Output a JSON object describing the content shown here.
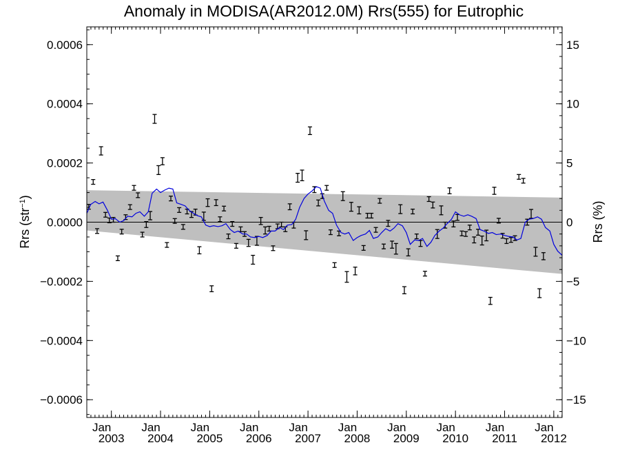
{
  "chart_data": {
    "type": "scatter",
    "title": "Anomaly in MODISA(AR2012.0M) Rrs(555) for Eutrophic",
    "ylabel_left": {
      "main": "Rrs (str",
      "sup": "−1",
      "close": ")"
    },
    "ylabel_right": "Rrs (%)",
    "xlim": [
      2002.5,
      2012.17
    ],
    "ylim": [
      -0.00066,
      0.00066
    ],
    "right_ylim": [
      -16.5,
      16.5
    ],
    "grid": false,
    "left_ticks": [
      {
        "v": 0.0006,
        "label": "0.0006"
      },
      {
        "v": 0.0004,
        "label": "0.0004"
      },
      {
        "v": 0.0002,
        "label": "0.0002"
      },
      {
        "v": 0.0,
        "label": "0.0000"
      },
      {
        "v": -0.0002,
        "label": "−0.0002"
      },
      {
        "v": -0.0004,
        "label": "−0.0004"
      },
      {
        "v": -0.0006,
        "label": "−0.0006"
      }
    ],
    "right_ticks": [
      {
        "v": 15,
        "label": "15"
      },
      {
        "v": 10,
        "label": "10"
      },
      {
        "v": 5,
        "label": "5"
      },
      {
        "v": 0,
        "label": "0"
      },
      {
        "v": -5,
        "label": "−5"
      },
      {
        "v": -10,
        "label": "−10"
      },
      {
        "v": -15,
        "label": "−15"
      }
    ],
    "x_major_ticks": [
      {
        "v": 2003.0,
        "month": "Jan",
        "year": "2003"
      },
      {
        "v": 2004.0,
        "month": "Jan",
        "year": "2004"
      },
      {
        "v": 2005.0,
        "month": "Jan",
        "year": "2005"
      },
      {
        "v": 2006.0,
        "month": "Jan",
        "year": "2006"
      },
      {
        "v": 2007.0,
        "month": "Jan",
        "year": "2007"
      },
      {
        "v": 2008.0,
        "month": "Jan",
        "year": "2008"
      },
      {
        "v": 2009.0,
        "month": "Jan",
        "year": "2009"
      },
      {
        "v": 2010.0,
        "month": "Jan",
        "year": "2010"
      },
      {
        "v": 2011.0,
        "month": "Jan",
        "year": "2011"
      },
      {
        "v": 2012.0,
        "month": "Jan",
        "year": "2012"
      }
    ],
    "band": {
      "upper": [
        [
          2002.5,
          0.000108
        ],
        [
          2012.17,
          8.3e-05
        ]
      ],
      "lower": [
        [
          2002.5,
          -2.8e-05
        ],
        [
          2012.17,
          -0.000175
        ]
      ]
    },
    "zero_line": 0.0,
    "points": [
      {
        "x": 2002.54,
        "y": 5.2e-05,
        "err": 8e-06
      },
      {
        "x": 2002.63,
        "y": 0.000136,
        "err": 8e-06
      },
      {
        "x": 2002.71,
        "y": -3e-05,
        "err": 8e-06
      },
      {
        "x": 2002.79,
        "y": 0.000241,
        "err": 1.4e-05
      },
      {
        "x": 2002.88,
        "y": 2.5e-05,
        "err": 8e-06
      },
      {
        "x": 2002.96,
        "y": 6e-06,
        "err": 8e-06
      },
      {
        "x": 2003.04,
        "y": 8e-06,
        "err": 8e-06
      },
      {
        "x": 2003.13,
        "y": -0.000122,
        "err": 8e-06
      },
      {
        "x": 2003.21,
        "y": -3.2e-05,
        "err": 8e-06
      },
      {
        "x": 2003.29,
        "y": 1.7e-05,
        "err": 8e-06
      },
      {
        "x": 2003.38,
        "y": 5.1e-05,
        "err": 8e-06
      },
      {
        "x": 2003.46,
        "y": 0.000116,
        "err": 8e-06
      },
      {
        "x": 2003.54,
        "y": 9.1e-05,
        "err": 8e-06
      },
      {
        "x": 2003.63,
        "y": -4.2e-05,
        "err": 8e-06
      },
      {
        "x": 2003.71,
        "y": -8e-06,
        "err": 1e-05
      },
      {
        "x": 2003.79,
        "y": 2.2e-05,
        "err": 1.4e-05
      },
      {
        "x": 2003.88,
        "y": 0.000349,
        "err": 1.5e-05
      },
      {
        "x": 2003.96,
        "y": 0.000176,
        "err": 1.5e-05
      },
      {
        "x": 2004.04,
        "y": 0.000206,
        "err": 1.2e-05
      },
      {
        "x": 2004.13,
        "y": -7.7e-05,
        "err": 8e-06
      },
      {
        "x": 2004.21,
        "y": 8e-05,
        "err": 8e-06
      },
      {
        "x": 2004.29,
        "y": 4e-06,
        "err": 8e-06
      },
      {
        "x": 2004.38,
        "y": 4.1e-05,
        "err": 8e-06
      },
      {
        "x": 2004.46,
        "y": -1.6e-05,
        "err": 8e-06
      },
      {
        "x": 2004.54,
        "y": 3.6e-05,
        "err": 8e-06
      },
      {
        "x": 2004.63,
        "y": 2.6e-05,
        "err": 1e-05
      },
      {
        "x": 2004.71,
        "y": 3.4e-05,
        "err": 1e-05
      },
      {
        "x": 2004.79,
        "y": -9.5e-05,
        "err": 1.2e-05
      },
      {
        "x": 2004.88,
        "y": 2e-05,
        "err": 1.4e-05
      },
      {
        "x": 2004.96,
        "y": 6.6e-05,
        "err": 1.3e-05
      },
      {
        "x": 2005.04,
        "y": -0.000225,
        "err": 1e-05
      },
      {
        "x": 2005.13,
        "y": 6.6e-05,
        "err": 1e-05
      },
      {
        "x": 2005.21,
        "y": 1e-05,
        "err": 8e-06
      },
      {
        "x": 2005.29,
        "y": 4.6e-05,
        "err": 8e-06
      },
      {
        "x": 2005.38,
        "y": -4.8e-05,
        "err": 8e-06
      },
      {
        "x": 2005.46,
        "y": -6e-06,
        "err": 8e-06
      },
      {
        "x": 2005.54,
        "y": -8e-05,
        "err": 8e-06
      },
      {
        "x": 2005.63,
        "y": -2.4e-05,
        "err": 8e-06
      },
      {
        "x": 2005.71,
        "y": -4e-05,
        "err": 8e-06
      },
      {
        "x": 2005.79,
        "y": -7e-05,
        "err": 1.2e-05
      },
      {
        "x": 2005.88,
        "y": -0.000127,
        "err": 1.5e-05
      },
      {
        "x": 2005.96,
        "y": -6.3e-05,
        "err": 1.5e-05
      },
      {
        "x": 2006.04,
        "y": 4e-06,
        "err": 1.2e-05
      },
      {
        "x": 2006.13,
        "y": -2.8e-05,
        "err": 1.2e-05
      },
      {
        "x": 2006.21,
        "y": -2.2e-05,
        "err": 8e-06
      },
      {
        "x": 2006.29,
        "y": -8.8e-05,
        "err": 8e-06
      },
      {
        "x": 2006.38,
        "y": -1.4e-05,
        "err": 8e-06
      },
      {
        "x": 2006.46,
        "y": -8e-06,
        "err": 8e-06
      },
      {
        "x": 2006.54,
        "y": -2.4e-05,
        "err": 8e-06
      },
      {
        "x": 2006.63,
        "y": 5.2e-05,
        "err": 1e-05
      },
      {
        "x": 2006.71,
        "y": -1e-05,
        "err": 1e-05
      },
      {
        "x": 2006.79,
        "y": 0.00015,
        "err": 1.5e-05
      },
      {
        "x": 2006.88,
        "y": 0.000158,
        "err": 1.8e-05
      },
      {
        "x": 2006.96,
        "y": -4.4e-05,
        "err": 1.5e-05
      },
      {
        "x": 2007.04,
        "y": 0.000309,
        "err": 1.3e-05
      },
      {
        "x": 2007.13,
        "y": 0.00011,
        "err": 1e-05
      },
      {
        "x": 2007.21,
        "y": 6.5e-05,
        "err": 1e-05
      },
      {
        "x": 2007.29,
        "y": 8.8e-05,
        "err": 8e-06
      },
      {
        "x": 2007.38,
        "y": 0.000116,
        "err": 8e-06
      },
      {
        "x": 2007.46,
        "y": -3.4e-05,
        "err": 8e-06
      },
      {
        "x": 2007.54,
        "y": -0.000145,
        "err": 8e-06
      },
      {
        "x": 2007.63,
        "y": -3.8e-05,
        "err": 8e-06
      },
      {
        "x": 2007.71,
        "y": 8.8e-05,
        "err": 1.5e-05
      },
      {
        "x": 2007.79,
        "y": -0.000185,
        "err": 1.8e-05
      },
      {
        "x": 2007.88,
        "y": 5.2e-05,
        "err": 1.5e-05
      },
      {
        "x": 2007.96,
        "y": -0.000165,
        "err": 1.3e-05
      },
      {
        "x": 2008.04,
        "y": 4e-05,
        "err": 1.2e-05
      },
      {
        "x": 2008.13,
        "y": -8.7e-05,
        "err": 8e-06
      },
      {
        "x": 2008.21,
        "y": 2.2e-05,
        "err": 8e-06
      },
      {
        "x": 2008.29,
        "y": 2.2e-05,
        "err": 8e-06
      },
      {
        "x": 2008.38,
        "y": -2.6e-05,
        "err": 8e-06
      },
      {
        "x": 2008.46,
        "y": 7.2e-05,
        "err": 8e-06
      },
      {
        "x": 2008.54,
        "y": -8.2e-05,
        "err": 8e-06
      },
      {
        "x": 2008.63,
        "y": -4e-06,
        "err": 1e-05
      },
      {
        "x": 2008.71,
        "y": -7.6e-05,
        "err": 1.2e-05
      },
      {
        "x": 2008.79,
        "y": -9e-05,
        "err": 1.8e-05
      },
      {
        "x": 2008.88,
        "y": 4.4e-05,
        "err": 1.5e-05
      },
      {
        "x": 2008.96,
        "y": -0.00023,
        "err": 1.2e-05
      },
      {
        "x": 2009.04,
        "y": -0.000102,
        "err": 1.2e-05
      },
      {
        "x": 2009.13,
        "y": 3.6e-05,
        "err": 8e-06
      },
      {
        "x": 2009.21,
        "y": -4.8e-05,
        "err": 8e-06
      },
      {
        "x": 2009.29,
        "y": -7.2e-05,
        "err": 1e-05
      },
      {
        "x": 2009.38,
        "y": -0.000174,
        "err": 8e-06
      },
      {
        "x": 2009.46,
        "y": 7.8e-05,
        "err": 8e-06
      },
      {
        "x": 2009.54,
        "y": 5.8e-05,
        "err": 1e-05
      },
      {
        "x": 2009.63,
        "y": -4e-05,
        "err": 1.5e-05
      },
      {
        "x": 2009.71,
        "y": 4e-05,
        "err": 1.5e-05
      },
      {
        "x": 2009.79,
        "y": -1e-05,
        "err": 1e-05
      },
      {
        "x": 2009.88,
        "y": 0.000106,
        "err": 1e-05
      },
      {
        "x": 2009.96,
        "y": -6e-06,
        "err": 1e-05
      },
      {
        "x": 2010.04,
        "y": 1.6e-05,
        "err": 1e-05
      },
      {
        "x": 2010.13,
        "y": -3.8e-05,
        "err": 8e-06
      },
      {
        "x": 2010.21,
        "y": -4e-05,
        "err": 8e-06
      },
      {
        "x": 2010.29,
        "y": -1.8e-05,
        "err": 8e-06
      },
      {
        "x": 2010.38,
        "y": -6e-05,
        "err": 1e-05
      },
      {
        "x": 2010.46,
        "y": -3.4e-05,
        "err": 1e-05
      },
      {
        "x": 2010.54,
        "y": -6.2e-05,
        "err": 1.5e-05
      },
      {
        "x": 2010.63,
        "y": -4.5e-05,
        "err": 1.8e-05
      },
      {
        "x": 2010.71,
        "y": -0.000266,
        "err": 1.2e-05
      },
      {
        "x": 2010.79,
        "y": 0.000106,
        "err": 1.2e-05
      },
      {
        "x": 2010.88,
        "y": 5e-06,
        "err": 8e-06
      },
      {
        "x": 2010.96,
        "y": -4.6e-05,
        "err": 8e-06
      },
      {
        "x": 2011.04,
        "y": -6.4e-05,
        "err": 8e-06
      },
      {
        "x": 2011.13,
        "y": -6e-05,
        "err": 8e-06
      },
      {
        "x": 2011.21,
        "y": -5.4e-05,
        "err": 8e-06
      },
      {
        "x": 2011.29,
        "y": 0.000153,
        "err": 8e-06
      },
      {
        "x": 2011.38,
        "y": 0.00014,
        "err": 8e-06
      },
      {
        "x": 2011.46,
        "y": 0.0,
        "err": 1e-05
      },
      {
        "x": 2011.54,
        "y": 2.8e-05,
        "err": 1.5e-05
      },
      {
        "x": 2011.63,
        "y": -0.0001,
        "err": 1.5e-05
      },
      {
        "x": 2011.71,
        "y": -0.00024,
        "err": 1.5e-05
      },
      {
        "x": 2011.79,
        "y": -0.000115,
        "err": 1.2e-05
      }
    ],
    "smoothed_line": {
      "color": "#0000dd",
      "x": [
        2002.5,
        2002.58,
        2002.67,
        2002.75,
        2002.83,
        2002.92,
        2003.0,
        2003.08,
        2003.17,
        2003.25,
        2003.33,
        2003.42,
        2003.5,
        2003.58,
        2003.67,
        2003.75,
        2003.83,
        2003.92,
        2004.0,
        2004.08,
        2004.17,
        2004.25,
        2004.33,
        2004.42,
        2004.5,
        2004.58,
        2004.67,
        2004.75,
        2004.83,
        2004.92,
        2005.0,
        2005.08,
        2005.17,
        2005.25,
        2005.33,
        2005.42,
        2005.5,
        2005.58,
        2005.67,
        2005.75,
        2005.83,
        2005.92,
        2006.0,
        2006.08,
        2006.17,
        2006.25,
        2006.33,
        2006.42,
        2006.5,
        2006.58,
        2006.67,
        2006.75,
        2006.83,
        2006.92,
        2007.0,
        2007.08,
        2007.17,
        2007.25,
        2007.33,
        2007.42,
        2007.5,
        2007.58,
        2007.67,
        2007.75,
        2007.83,
        2007.92,
        2008.0,
        2008.08,
        2008.17,
        2008.25,
        2008.33,
        2008.42,
        2008.5,
        2008.58,
        2008.67,
        2008.75,
        2008.83,
        2008.92,
        2009.0,
        2009.08,
        2009.17,
        2009.25,
        2009.33,
        2009.42,
        2009.5,
        2009.58,
        2009.67,
        2009.75,
        2009.83,
        2009.92,
        2010.0,
        2010.08,
        2010.17,
        2010.25,
        2010.33,
        2010.42,
        2010.5,
        2010.58,
        2010.67,
        2010.75,
        2010.83,
        2010.92,
        2011.0,
        2011.08,
        2011.17,
        2011.25,
        2011.33,
        2011.42,
        2011.5,
        2011.58,
        2011.67,
        2011.75,
        2011.83,
        2011.92,
        2012.0,
        2012.08,
        2012.17
      ],
      "y": [
        3e-05,
        6e-05,
        7e-05,
        6.2e-05,
        6.8e-05,
        4e-05,
        1e-05,
        1.2e-05,
        0.0,
        5e-06,
        2e-05,
        1.8e-05,
        3e-05,
        3.5e-05,
        2e-05,
        3.5e-05,
        9.8e-05,
        0.000112,
        0.0001,
        0.000108,
        0.000115,
        0.000112,
        6.5e-05,
        6e-05,
        5.5e-05,
        4e-05,
        3e-05,
        2.2e-05,
        1.8e-05,
        -1e-05,
        -1.5e-05,
        -1.2e-05,
        -1.5e-05,
        -1.2e-05,
        -5e-06,
        -2.5e-05,
        -3.5e-05,
        -3e-05,
        -4e-05,
        -4e-05,
        -5e-05,
        -5.2e-05,
        -4.8e-05,
        -5.2e-05,
        -4.5e-05,
        -3e-05,
        -3e-05,
        -1.8e-05,
        -2.5e-05,
        -1e-05,
        -8e-06,
        1e-05,
        5e-05,
        8e-05,
        9.5e-05,
        0.000105,
        0.00012,
        0.000115,
        7.2e-05,
        4e-05,
        3e-05,
        -1e-05,
        -3.5e-05,
        -4e-05,
        -3.5e-05,
        -6.2e-05,
        -5.2e-05,
        -4.5e-05,
        -4e-05,
        -2.8e-05,
        -5.5e-05,
        -5e-05,
        -3.5e-05,
        -2.2e-05,
        -3e-05,
        -2e-05,
        -5e-06,
        -1.2e-05,
        -3.5e-05,
        -7.5e-05,
        -6e-05,
        -6.2e-05,
        -5.5e-05,
        -8.2e-05,
        -6.8e-05,
        -4.5e-05,
        -3e-05,
        -2e-05,
        -5e-06,
        1e-05,
        3.5e-05,
        2.5e-05,
        2e-05,
        2.5e-05,
        2e-05,
        1.2e-05,
        -2.5e-05,
        -3e-05,
        -3.8e-05,
        -3.5e-05,
        -4.2e-05,
        -4e-05,
        -4.5e-05,
        -4.8e-05,
        -5e-05,
        -6e-05,
        -5.5e-05,
        0.0,
        1e-05,
        1.2e-05,
        1.8e-05,
        1e-05,
        -1.8e-05,
        -3e-05,
        -7.5e-05,
        -9.8e-05,
        -0.000112
      ]
    }
  }
}
